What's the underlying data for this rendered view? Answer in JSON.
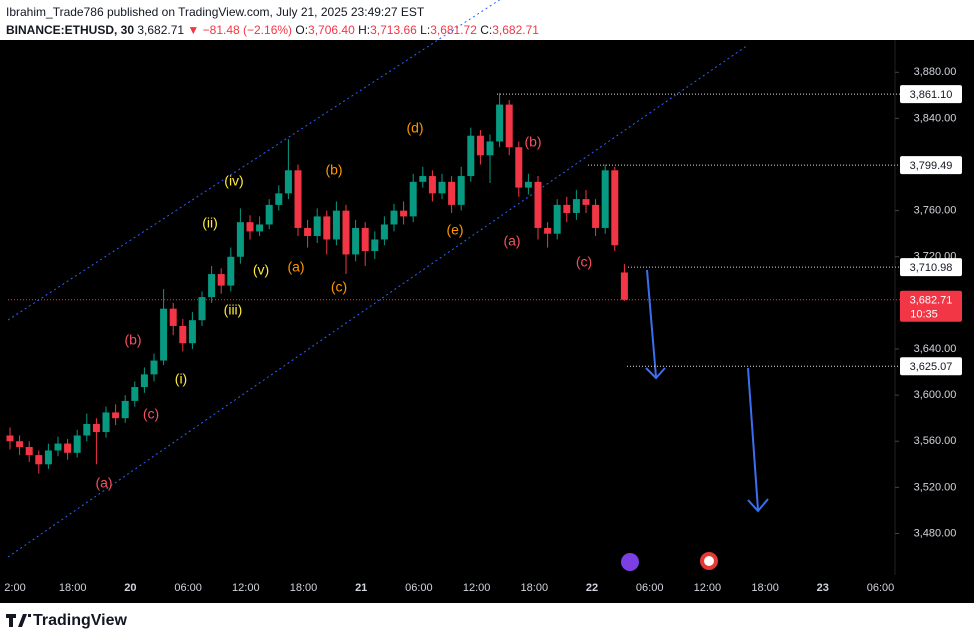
{
  "header": {
    "line1": "Ibrahim_Trade786 published on TradingView.com, July 21, 2025 23:49:27 EST",
    "symbol": "BINANCE:ETHUSD, 30",
    "price": "3,682.71",
    "change": "▼ −81.48 (−2.16%)",
    "o_label": "O:",
    "o": "3,706.40",
    "h_label": "H:",
    "h": "3,713.66",
    "l_label": "L:",
    "l": "3,681.72",
    "c_label": "C:",
    "c": "3,682.71"
  },
  "footer": {
    "brand": "TradingView"
  },
  "chart_data": {
    "type": "candlestick",
    "up_color": "#089981",
    "down_color": "#f23645",
    "ylim": [
      3444,
      3908
    ],
    "yticks": [
      {
        "value": 3880,
        "label": "3,880.00"
      },
      {
        "value": 3840,
        "label": "3,840.00"
      },
      {
        "value": 3760,
        "label": "3,760.00"
      },
      {
        "value": 3720,
        "label": "3,720.00"
      },
      {
        "value": 3640,
        "label": "3,640.00"
      },
      {
        "value": 3600,
        "label": "3,600.00"
      },
      {
        "value": 3560,
        "label": "3,560.00"
      },
      {
        "value": 3520,
        "label": "3,520.00"
      },
      {
        "value": 3480,
        "label": "3,480.00"
      }
    ],
    "xticks": [
      "2:00",
      "18:00",
      "20",
      "06:00",
      "12:00",
      "18:00",
      "21",
      "06:00",
      "12:00",
      "18:00",
      "22",
      "06:00",
      "12:00",
      "18:00",
      "23",
      "06:00"
    ],
    "grid": false,
    "levels": [
      {
        "value": 3861.1,
        "label": "3,861.10"
      },
      {
        "value": 3799.49,
        "label": "3,799.49"
      },
      {
        "value": 3710.98,
        "label": "3,710.98"
      },
      {
        "value": 3625.07,
        "label": "3,625.07"
      }
    ],
    "last_price": {
      "value": 3682.71,
      "label": "3,682.71",
      "countdown": "10:35"
    },
    "annotations": [
      {
        "text": "(a)",
        "color": "#f7525f"
      },
      {
        "text": "(b)",
        "color": "#f7525f"
      },
      {
        "text": "(c)",
        "color": "#f7525f"
      },
      {
        "text": "(i)",
        "color": "#ffeb3b"
      },
      {
        "text": "(ii)",
        "color": "#ffeb3b"
      },
      {
        "text": "(iii)",
        "color": "#ffeb3b"
      },
      {
        "text": "(iv)",
        "color": "#ffeb3b"
      },
      {
        "text": "(v)",
        "color": "#ffeb3b"
      },
      {
        "text": "(a)",
        "color": "#ff9800"
      },
      {
        "text": "(b)",
        "color": "#ff9800"
      },
      {
        "text": "(c)",
        "color": "#ff9800"
      },
      {
        "text": "(d)",
        "color": "#ff9800"
      },
      {
        "text": "(e)",
        "color": "#ff9800"
      },
      {
        "text": "(a)",
        "color": "#f7525f"
      },
      {
        "text": "(b)",
        "color": "#f7525f"
      },
      {
        "text": "(c)",
        "color": "#f7525f"
      }
    ],
    "ohlc": [
      [
        3565,
        3572,
        3553,
        3560
      ],
      [
        3560,
        3565,
        3548,
        3555
      ],
      [
        3555,
        3560,
        3542,
        3548
      ],
      [
        3548,
        3552,
        3532,
        3540
      ],
      [
        3540,
        3558,
        3536,
        3552
      ],
      [
        3552,
        3564,
        3547,
        3558
      ],
      [
        3558,
        3562,
        3544,
        3550
      ],
      [
        3550,
        3570,
        3546,
        3565
      ],
      [
        3565,
        3584,
        3560,
        3575
      ],
      [
        3575,
        3580,
        3540,
        3568
      ],
      [
        3568,
        3590,
        3563,
        3585
      ],
      [
        3585,
        3592,
        3574,
        3580
      ],
      [
        3580,
        3600,
        3576,
        3595
      ],
      [
        3595,
        3612,
        3590,
        3607
      ],
      [
        3607,
        3624,
        3602,
        3618
      ],
      [
        3618,
        3636,
        3612,
        3630
      ],
      [
        3630,
        3692,
        3626,
        3675
      ],
      [
        3675,
        3680,
        3652,
        3660
      ],
      [
        3660,
        3666,
        3638,
        3645
      ],
      [
        3645,
        3672,
        3640,
        3665
      ],
      [
        3665,
        3690,
        3660,
        3685
      ],
      [
        3685,
        3712,
        3680,
        3705
      ],
      [
        3705,
        3710,
        3688,
        3695
      ],
      [
        3695,
        3728,
        3690,
        3720
      ],
      [
        3720,
        3762,
        3714,
        3750
      ],
      [
        3750,
        3756,
        3735,
        3742
      ],
      [
        3742,
        3755,
        3738,
        3748
      ],
      [
        3748,
        3770,
        3744,
        3765
      ],
      [
        3765,
        3782,
        3760,
        3775
      ],
      [
        3775,
        3822,
        3770,
        3795
      ],
      [
        3795,
        3800,
        3738,
        3745
      ],
      [
        3745,
        3752,
        3728,
        3738
      ],
      [
        3738,
        3762,
        3732,
        3755
      ],
      [
        3755,
        3760,
        3722,
        3735
      ],
      [
        3735,
        3768,
        3730,
        3760
      ],
      [
        3760,
        3765,
        3705,
        3722
      ],
      [
        3722,
        3752,
        3716,
        3745
      ],
      [
        3745,
        3750,
        3712,
        3725
      ],
      [
        3725,
        3742,
        3718,
        3735
      ],
      [
        3735,
        3755,
        3730,
        3748
      ],
      [
        3748,
        3766,
        3742,
        3760
      ],
      [
        3760,
        3768,
        3748,
        3755
      ],
      [
        3755,
        3792,
        3750,
        3785
      ],
      [
        3785,
        3798,
        3780,
        3790
      ],
      [
        3790,
        3795,
        3768,
        3775
      ],
      [
        3775,
        3792,
        3770,
        3785
      ],
      [
        3785,
        3790,
        3758,
        3765
      ],
      [
        3765,
        3798,
        3760,
        3790
      ],
      [
        3790,
        3832,
        3785,
        3825
      ],
      [
        3825,
        3830,
        3800,
        3808
      ],
      [
        3808,
        3826,
        3784,
        3820
      ],
      [
        3820,
        3862,
        3815,
        3852
      ],
      [
        3852,
        3856,
        3808,
        3815
      ],
      [
        3815,
        3820,
        3772,
        3780
      ],
      [
        3780,
        3792,
        3774,
        3785
      ],
      [
        3785,
        3790,
        3735,
        3745
      ],
      [
        3745,
        3750,
        3728,
        3740
      ],
      [
        3740,
        3770,
        3735,
        3765
      ],
      [
        3765,
        3772,
        3750,
        3758
      ],
      [
        3758,
        3778,
        3752,
        3770
      ],
      [
        3770,
        3778,
        3758,
        3765
      ],
      [
        3765,
        3770,
        3738,
        3745
      ],
      [
        3745,
        3800,
        3740,
        3795
      ],
      [
        3795,
        3798,
        3725,
        3730
      ],
      [
        3706.4,
        3713.66,
        3681.72,
        3682.71
      ]
    ]
  }
}
